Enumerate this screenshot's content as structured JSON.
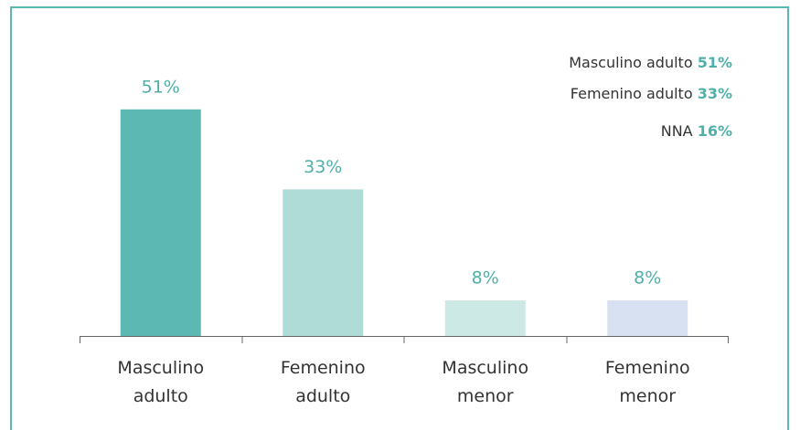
{
  "chart_data": {
    "type": "bar",
    "categories": [
      "Masculino adulto",
      "Femenino adulto",
      "Masculino menor",
      "Femenino menor"
    ],
    "values": [
      51,
      33,
      8,
      8
    ],
    "value_labels": [
      "51%",
      "33%",
      "8%",
      "8%"
    ],
    "colors": [
      "#5cb8b2",
      "#b0dcd8",
      "#cde9e6",
      "#d8e1f1"
    ],
    "ylim": [
      0,
      60
    ],
    "legend": [
      {
        "label": "Masculino adulto",
        "value": "51%"
      },
      {
        "label": "Femenino adulto",
        "value": "33%"
      },
      {
        "label": "NNA",
        "value": "16%"
      }
    ]
  }
}
